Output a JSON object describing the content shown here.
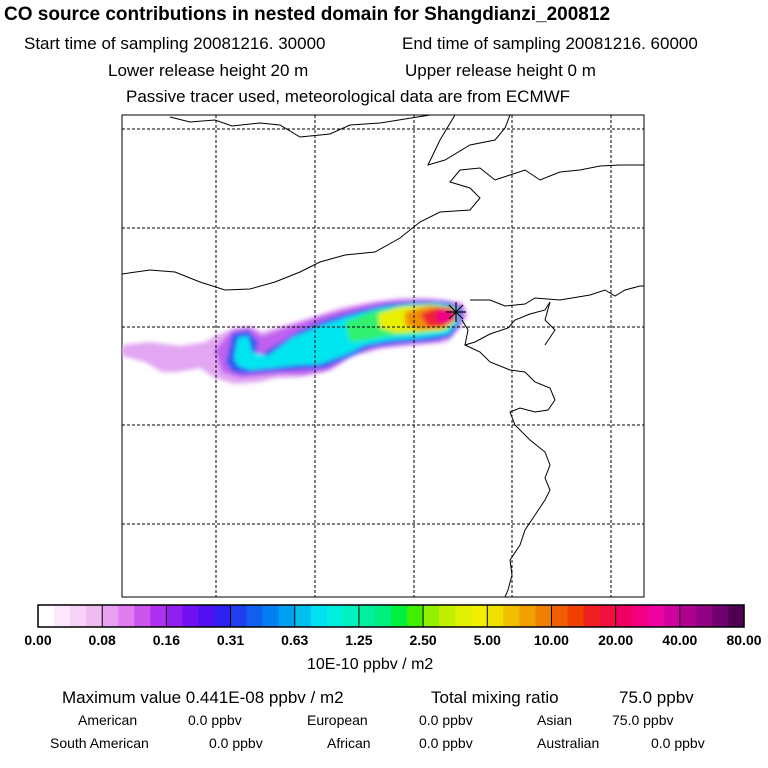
{
  "header": {
    "title": "CO  source contributions in nested domain for Shangdianzi_200812",
    "start_label": "Start time of sampling 20081216. 30000",
    "end_label": "End time of sampling 20081216. 60000",
    "lower_height": "Lower release height   20 m",
    "upper_height": "Upper release height    0 m",
    "tracer_info": "Passive tracer used, meteorological data are from ECMWF"
  },
  "colorbar": {
    "ticks": [
      "0.00",
      "0.08",
      "0.16",
      "0.31",
      "0.63",
      "1.25",
      "2.50",
      "5.00",
      "10.00",
      "20.00",
      "40.00",
      "80.00"
    ],
    "unit": "10E-10 ppbv / m2",
    "colors": [
      "#ffffff",
      "#fbe8fb",
      "#f6d2f6",
      "#f0bcf0",
      "#e8a0f0",
      "#e07ef0",
      "#cc55ee",
      "#b030f0",
      "#8f20f0",
      "#7010f0",
      "#5010f0",
      "#3020f0",
      "#2040f0",
      "#1060f0",
      "#0080f0",
      "#00a0f0",
      "#00c0f0",
      "#00e0f0",
      "#00f0e0",
      "#00f0c0",
      "#00f0a0",
      "#00f080",
      "#00f040",
      "#40f000",
      "#90f000",
      "#c0f000",
      "#e0f000",
      "#f0f000",
      "#f0e000",
      "#f0c000",
      "#f0a000",
      "#f08000",
      "#f06000",
      "#f04000",
      "#f02020",
      "#f01040",
      "#f00060",
      "#f00080",
      "#f000a0",
      "#d000a0",
      "#b00090",
      "#900080",
      "#700070",
      "#500050"
    ]
  },
  "stats": {
    "max_label": "Maximum value  0.441E-08 ppbv / m2",
    "total_label": "Total mixing ratio",
    "total_value": "75.0 ppbv",
    "regions": [
      {
        "name": "American",
        "value": "0.0 ppbv"
      },
      {
        "name": "European",
        "value": "0.0 ppbv"
      },
      {
        "name": "Asian",
        "value": "75.0 ppbv"
      },
      {
        "name": "South American",
        "value": "0.0 ppbv"
      },
      {
        "name": "African",
        "value": "0.0 ppbv"
      },
      {
        "name": "Australian",
        "value": "0.0 ppbv"
      }
    ]
  },
  "map": {
    "receptor_marker": "asterisk-icon"
  }
}
